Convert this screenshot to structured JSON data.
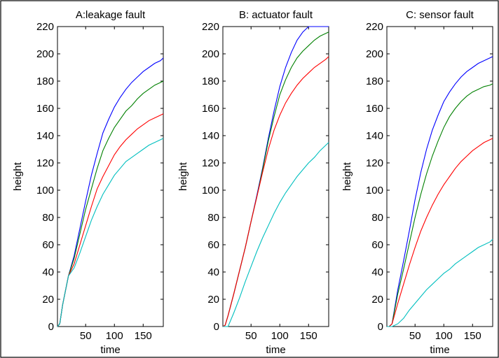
{
  "chart_data": [
    {
      "type": "line",
      "title": "A:leakage fault",
      "xlabel": "time",
      "ylabel": "height",
      "xlim": [
        1,
        185
      ],
      "ylim": [
        0,
        220
      ],
      "xticks": [
        50,
        100,
        150
      ],
      "yticks": [
        0,
        20,
        40,
        60,
        80,
        100,
        120,
        140,
        160,
        180,
        200,
        220
      ],
      "grid": false,
      "x": [
        1,
        5,
        10,
        20,
        30,
        40,
        50,
        60,
        70,
        80,
        90,
        100,
        110,
        120,
        130,
        140,
        150,
        160,
        170,
        180,
        185
      ],
      "series": [
        {
          "color": "#0000ff",
          "values": [
            0,
            2,
            16,
            37,
            52,
            72,
            92,
            111,
            127,
            142,
            152,
            161,
            168,
            174,
            179,
            183,
            187,
            190,
            193,
            195,
            197
          ]
        },
        {
          "color": "#008000",
          "values": [
            0,
            2,
            16,
            37,
            50,
            68,
            86,
            101,
            116,
            129,
            138,
            146,
            152,
            158,
            162,
            167,
            171,
            174,
            177,
            179,
            180
          ]
        },
        {
          "color": "#ff0000",
          "values": [
            0,
            2,
            16,
            37,
            46,
            60,
            74,
            88,
            101,
            110,
            118,
            126,
            132,
            137,
            141,
            145,
            148,
            151,
            153,
            155,
            156
          ]
        },
        {
          "color": "#00bfbf",
          "values": [
            0,
            2,
            16,
            37,
            43,
            54,
            66,
            78,
            88,
            97,
            104,
            111,
            116,
            121,
            124,
            127,
            130,
            133,
            135,
            137,
            138
          ]
        }
      ]
    },
    {
      "type": "line",
      "title": "B: actuator fault",
      "xlabel": "time",
      "ylabel": "height",
      "xlim": [
        1,
        185
      ],
      "ylim": [
        0,
        220
      ],
      "xticks": [
        50,
        100,
        150
      ],
      "yticks": [
        0,
        20,
        40,
        60,
        80,
        100,
        120,
        140,
        160,
        180,
        200,
        220
      ],
      "grid": false,
      "x": [
        1,
        5,
        10,
        20,
        30,
        40,
        50,
        60,
        70,
        80,
        90,
        100,
        110,
        120,
        130,
        140,
        150,
        160,
        170,
        180,
        185
      ],
      "series": [
        {
          "color": "#0000ff",
          "values": [
            0,
            1,
            8,
            24,
            41,
            58,
            77,
            96,
            116,
            138,
            158,
            176,
            190,
            201,
            210,
            216,
            220,
            220,
            220,
            220,
            220
          ]
        },
        {
          "color": "#008000",
          "values": [
            0,
            1,
            8,
            24,
            41,
            58,
            77,
            95,
            115,
            136,
            154,
            170,
            181,
            190,
            197,
            202,
            206,
            210,
            213,
            215,
            216
          ]
        },
        {
          "color": "#ff0000",
          "values": [
            0,
            1,
            8,
            24,
            41,
            58,
            77,
            95,
            113,
            130,
            144,
            155,
            164,
            171,
            177,
            182,
            186,
            190,
            193,
            196,
            198
          ]
        },
        {
          "color": "#00bfbf",
          "values": [
            0,
            0,
            0,
            10,
            21,
            33,
            44,
            55,
            65,
            74,
            83,
            91,
            98,
            104,
            110,
            115,
            120,
            124,
            129,
            133,
            135
          ]
        }
      ]
    },
    {
      "type": "line",
      "title": "C: sensor fault",
      "xlabel": "time",
      "ylabel": "height",
      "xlim": [
        1,
        185
      ],
      "ylim": [
        0,
        220
      ],
      "xticks": [
        50,
        100,
        150
      ],
      "yticks": [
        0,
        20,
        40,
        60,
        80,
        100,
        120,
        140,
        160,
        180,
        200,
        220
      ],
      "grid": false,
      "x": [
        1,
        5,
        10,
        20,
        30,
        40,
        50,
        60,
        70,
        80,
        90,
        100,
        110,
        120,
        130,
        140,
        150,
        160,
        170,
        180,
        185
      ],
      "series": [
        {
          "color": "#0000ff",
          "values": [
            0,
            0,
            2,
            27,
            48,
            70,
            93,
            113,
            130,
            144,
            155,
            165,
            172,
            178,
            183,
            187,
            190,
            193,
            195,
            197,
            198
          ]
        },
        {
          "color": "#008000",
          "values": [
            0,
            0,
            2,
            24,
            42,
            61,
            80,
            97,
            112,
            125,
            136,
            146,
            154,
            160,
            165,
            169,
            172,
            174,
            176,
            177,
            178
          ]
        },
        {
          "color": "#ff0000",
          "values": [
            0,
            0,
            2,
            17,
            31,
            45,
            58,
            70,
            80,
            89,
            97,
            104,
            110,
            116,
            121,
            125,
            129,
            132,
            135,
            137,
            138
          ]
        },
        {
          "color": "#00bfbf",
          "values": [
            0,
            0,
            0,
            2,
            6,
            12,
            17,
            22,
            27,
            31,
            35,
            39,
            42,
            46,
            49,
            52,
            55,
            58,
            60,
            62,
            64
          ]
        }
      ]
    }
  ]
}
